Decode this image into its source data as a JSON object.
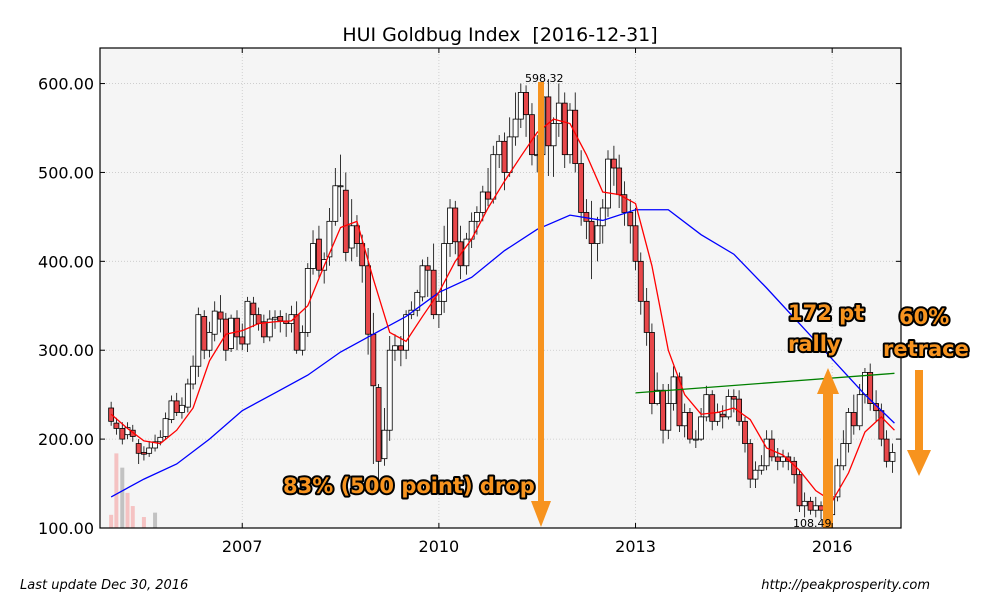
{
  "chart_data": {
    "type": "candlestick",
    "title": "HUI Goldbug Index  [2016-12-31]",
    "y_ticks": [
      "100.00",
      "200.00",
      "300.00",
      "400.00",
      "500.00",
      "600.00"
    ],
    "x_ticks": [
      "2007",
      "2010",
      "2013",
      "2016"
    ],
    "ylim": [
      100,
      640
    ],
    "xlim": [
      2004.83,
      2017.05
    ],
    "grid": true,
    "annotations": {
      "peak_label": "598.32",
      "low_label": "108.49",
      "drop": "83% (500 point) drop",
      "rally_line1": "172 pt",
      "rally_line2": "rally",
      "retrace_line1": "60%",
      "retrace_line2": "retrace"
    },
    "colors": {
      "up_candle": "#ffffff",
      "down_candle": "#e8474a",
      "ma_short": "#ff0000",
      "ma_long": "#0000ff",
      "trend_line": "#008000",
      "arrow": "#f7931e",
      "plot_bg": "#f5f5f5"
    },
    "candles": [
      [
        2005.0,
        235,
        220,
        242,
        215
      ],
      [
        2005.08,
        218,
        212,
        224,
        205
      ],
      [
        2005.17,
        212,
        200,
        219,
        194
      ],
      [
        2005.25,
        205,
        213,
        219,
        200
      ],
      [
        2005.33,
        210,
        203,
        216,
        197
      ],
      [
        2005.42,
        195,
        184,
        200,
        172
      ],
      [
        2005.5,
        185,
        183,
        192,
        176
      ],
      [
        2005.58,
        184,
        190,
        198,
        180
      ],
      [
        2005.67,
        190,
        197,
        205,
        186
      ],
      [
        2005.75,
        197,
        202,
        210,
        193
      ],
      [
        2005.83,
        203,
        223,
        230,
        199
      ],
      [
        2005.92,
        222,
        243,
        249,
        218
      ],
      [
        2006.0,
        243,
        230,
        252,
        226
      ],
      [
        2006.08,
        230,
        238,
        247,
        223
      ],
      [
        2006.17,
        236,
        262,
        268,
        230
      ],
      [
        2006.25,
        262,
        282,
        294,
        256
      ],
      [
        2006.33,
        282,
        340,
        348,
        270
      ],
      [
        2006.42,
        338,
        300,
        345,
        290
      ],
      [
        2006.5,
        300,
        320,
        332,
        292
      ],
      [
        2006.58,
        318,
        344,
        355,
        310
      ],
      [
        2006.67,
        343,
        335,
        362,
        320
      ],
      [
        2006.75,
        335,
        300,
        342,
        288
      ],
      [
        2006.83,
        302,
        336,
        340,
        298
      ],
      [
        2006.92,
        336,
        315,
        345,
        300
      ],
      [
        2007.0,
        315,
        307,
        330,
        300
      ],
      [
        2007.08,
        307,
        355,
        360,
        298
      ],
      [
        2007.17,
        353,
        340,
        360,
        326
      ],
      [
        2007.25,
        340,
        330,
        348,
        322
      ],
      [
        2007.33,
        332,
        315,
        340,
        308
      ],
      [
        2007.42,
        315,
        335,
        345,
        310
      ],
      [
        2007.5,
        335,
        337,
        345,
        324
      ],
      [
        2007.58,
        338,
        333,
        345,
        320
      ],
      [
        2007.67,
        333,
        330,
        342,
        315
      ],
      [
        2007.75,
        330,
        340,
        350,
        320
      ],
      [
        2007.83,
        340,
        300,
        355,
        296
      ],
      [
        2007.92,
        300,
        320,
        328,
        294
      ],
      [
        2008.0,
        320,
        392,
        398,
        315
      ],
      [
        2008.08,
        392,
        420,
        435,
        385
      ],
      [
        2008.17,
        425,
        390,
        440,
        380
      ],
      [
        2008.25,
        390,
        402,
        410,
        375
      ],
      [
        2008.33,
        405,
        445,
        460,
        395
      ],
      [
        2008.42,
        445,
        485,
        505,
        440
      ],
      [
        2008.5,
        485,
        485,
        520,
        450
      ],
      [
        2008.58,
        480,
        410,
        500,
        400
      ],
      [
        2008.67,
        415,
        440,
        470,
        400
      ],
      [
        2008.75,
        440,
        420,
        452,
        405
      ],
      [
        2008.83,
        420,
        395,
        430,
        376
      ],
      [
        2008.92,
        395,
        318,
        415,
        295
      ],
      [
        2009.0,
        318,
        260,
        342,
        172
      ],
      [
        2009.08,
        258,
        175,
        262,
        150
      ],
      [
        2009.17,
        178,
        210,
        235,
        170
      ],
      [
        2009.25,
        210,
        300,
        316,
        198
      ],
      [
        2009.33,
        300,
        305,
        318,
        288
      ],
      [
        2009.42,
        305,
        300,
        316,
        282
      ],
      [
        2009.5,
        300,
        340,
        345,
        290
      ],
      [
        2009.58,
        340,
        345,
        355,
        335
      ],
      [
        2009.67,
        345,
        365,
        368,
        338
      ],
      [
        2009.75,
        360,
        395,
        402,
        355
      ],
      [
        2009.83,
        395,
        390,
        405,
        360
      ],
      [
        2009.92,
        390,
        340,
        420,
        335
      ],
      [
        2010.0,
        340,
        355,
        363,
        325
      ],
      [
        2010.08,
        355,
        420,
        440,
        342
      ],
      [
        2010.17,
        420,
        460,
        470,
        405
      ],
      [
        2010.25,
        460,
        422,
        468,
        408
      ],
      [
        2010.33,
        422,
        395,
        440,
        380
      ],
      [
        2010.42,
        395,
        425,
        432,
        385
      ],
      [
        2010.5,
        425,
        445,
        455,
        415
      ],
      [
        2010.58,
        445,
        455,
        462,
        430
      ],
      [
        2010.67,
        455,
        478,
        485,
        445
      ],
      [
        2010.75,
        478,
        470,
        505,
        462
      ],
      [
        2010.83,
        470,
        520,
        530,
        465
      ],
      [
        2010.92,
        520,
        535,
        542,
        505
      ],
      [
        2011.0,
        535,
        500,
        545,
        480
      ],
      [
        2011.08,
        500,
        540,
        562,
        495
      ],
      [
        2011.17,
        540,
        560,
        590,
        530
      ],
      [
        2011.25,
        560,
        590,
        600,
        550
      ],
      [
        2011.33,
        590,
        565,
        598,
        540
      ],
      [
        2011.42,
        565,
        520,
        578,
        508
      ],
      [
        2011.5,
        520,
        520,
        542,
        500
      ],
      [
        2011.58,
        520,
        585,
        600,
        510
      ],
      [
        2011.67,
        585,
        530,
        605,
        496
      ],
      [
        2011.75,
        530,
        555,
        562,
        495
      ],
      [
        2011.83,
        555,
        578,
        600,
        540
      ],
      [
        2011.92,
        578,
        520,
        590,
        505
      ],
      [
        2012.0,
        520,
        570,
        578,
        510
      ],
      [
        2012.08,
        570,
        510,
        590,
        500
      ],
      [
        2012.17,
        510,
        455,
        525,
        440
      ],
      [
        2012.25,
        455,
        445,
        470,
        425
      ],
      [
        2012.33,
        445,
        420,
        468,
        380
      ],
      [
        2012.42,
        420,
        440,
        450,
        400
      ],
      [
        2012.5,
        440,
        460,
        470,
        420
      ],
      [
        2012.58,
        460,
        515,
        525,
        450
      ],
      [
        2012.67,
        515,
        505,
        530,
        485
      ],
      [
        2012.75,
        505,
        475,
        520,
        460
      ],
      [
        2012.83,
        475,
        455,
        490,
        440
      ],
      [
        2012.92,
        455,
        440,
        470,
        420
      ],
      [
        2013.0,
        440,
        400,
        460,
        390
      ],
      [
        2013.08,
        400,
        355,
        410,
        340
      ],
      [
        2013.17,
        355,
        320,
        370,
        305
      ],
      [
        2013.25,
        320,
        240,
        330,
        228
      ],
      [
        2013.33,
        240,
        255,
        275,
        238
      ],
      [
        2013.42,
        255,
        210,
        262,
        195
      ],
      [
        2013.5,
        210,
        240,
        262,
        200
      ],
      [
        2013.58,
        240,
        270,
        282,
        232
      ],
      [
        2013.67,
        270,
        215,
        275,
        208
      ],
      [
        2013.75,
        215,
        230,
        240,
        202
      ],
      [
        2013.83,
        230,
        200,
        235,
        195
      ],
      [
        2013.92,
        200,
        200,
        210,
        190
      ],
      [
        2014.0,
        200,
        225,
        235,
        198
      ],
      [
        2014.08,
        225,
        250,
        260,
        220
      ],
      [
        2014.17,
        250,
        220,
        255,
        210
      ],
      [
        2014.25,
        220,
        230,
        240,
        215
      ],
      [
        2014.33,
        228,
        225,
        238,
        212
      ],
      [
        2014.42,
        225,
        248,
        256,
        222
      ],
      [
        2014.5,
        248,
        245,
        256,
        230
      ],
      [
        2014.58,
        245,
        220,
        255,
        215
      ],
      [
        2014.67,
        220,
        195,
        225,
        185
      ],
      [
        2014.75,
        195,
        155,
        200,
        145
      ],
      [
        2014.83,
        155,
        165,
        175,
        145
      ],
      [
        2014.92,
        165,
        170,
        182,
        160
      ],
      [
        2015.0,
        170,
        200,
        210,
        165
      ],
      [
        2015.08,
        200,
        180,
        210,
        175
      ],
      [
        2015.17,
        180,
        175,
        190,
        165
      ],
      [
        2015.25,
        175,
        180,
        188,
        168
      ],
      [
        2015.33,
        180,
        175,
        185,
        165
      ],
      [
        2015.42,
        175,
        160,
        180,
        150
      ],
      [
        2015.5,
        160,
        125,
        165,
        118
      ],
      [
        2015.58,
        125,
        130,
        140,
        112
      ],
      [
        2015.67,
        130,
        120,
        135,
        115
      ],
      [
        2015.75,
        120,
        125,
        135,
        112
      ],
      [
        2015.83,
        125,
        120,
        130,
        110
      ],
      [
        2015.92,
        120,
        115,
        125,
        108
      ],
      [
        2016.0,
        115,
        135,
        140,
        110
      ],
      [
        2016.08,
        135,
        170,
        178,
        130
      ],
      [
        2016.17,
        170,
        195,
        210,
        165
      ],
      [
        2016.25,
        195,
        230,
        235,
        185
      ],
      [
        2016.33,
        230,
        215,
        250,
        205
      ],
      [
        2016.42,
        215,
        250,
        262,
        210
      ],
      [
        2016.5,
        250,
        275,
        280,
        240
      ],
      [
        2016.58,
        275,
        240,
        285,
        232
      ],
      [
        2016.67,
        240,
        232,
        255,
        220
      ],
      [
        2016.75,
        232,
        200,
        240,
        192
      ],
      [
        2016.83,
        200,
        175,
        210,
        168
      ],
      [
        2016.92,
        175,
        185,
        195,
        162
      ]
    ],
    "ma_short": [
      [
        2005.0,
        228
      ],
      [
        2005.25,
        212
      ],
      [
        2005.5,
        198
      ],
      [
        2005.75,
        195
      ],
      [
        2006.0,
        210
      ],
      [
        2006.25,
        235
      ],
      [
        2006.5,
        288
      ],
      [
        2006.75,
        318
      ],
      [
        2007.0,
        322
      ],
      [
        2007.25,
        330
      ],
      [
        2007.5,
        332
      ],
      [
        2007.75,
        333
      ],
      [
        2008.0,
        350
      ],
      [
        2008.25,
        395
      ],
      [
        2008.5,
        438
      ],
      [
        2008.75,
        445
      ],
      [
        2009.0,
        380
      ],
      [
        2009.25,
        320
      ],
      [
        2009.5,
        310
      ],
      [
        2009.75,
        338
      ],
      [
        2010.0,
        365
      ],
      [
        2010.25,
        400
      ],
      [
        2010.5,
        425
      ],
      [
        2010.75,
        460
      ],
      [
        2011.0,
        490
      ],
      [
        2011.25,
        518
      ],
      [
        2011.5,
        545
      ],
      [
        2011.75,
        560
      ],
      [
        2012.0,
        555
      ],
      [
        2012.25,
        520
      ],
      [
        2012.5,
        478
      ],
      [
        2012.75,
        475
      ],
      [
        2013.0,
        465
      ],
      [
        2013.25,
        395
      ],
      [
        2013.5,
        300
      ],
      [
        2013.75,
        250
      ],
      [
        2014.0,
        228
      ],
      [
        2014.25,
        230
      ],
      [
        2014.5,
        235
      ],
      [
        2014.75,
        222
      ],
      [
        2015.0,
        190
      ],
      [
        2015.25,
        182
      ],
      [
        2015.5,
        165
      ],
      [
        2015.75,
        142
      ],
      [
        2016.0,
        130
      ],
      [
        2016.25,
        162
      ],
      [
        2016.5,
        208
      ],
      [
        2016.75,
        225
      ],
      [
        2016.95,
        210
      ]
    ],
    "ma_long": [
      [
        2005.0,
        135
      ],
      [
        2005.5,
        155
      ],
      [
        2006.0,
        172
      ],
      [
        2006.5,
        200
      ],
      [
        2007.0,
        232
      ],
      [
        2007.5,
        252
      ],
      [
        2008.0,
        272
      ],
      [
        2008.5,
        298
      ],
      [
        2009.0,
        318
      ],
      [
        2009.5,
        338
      ],
      [
        2010.0,
        365
      ],
      [
        2010.5,
        382
      ],
      [
        2011.0,
        412
      ],
      [
        2011.5,
        436
      ],
      [
        2012.0,
        452
      ],
      [
        2012.5,
        446
      ],
      [
        2013.0,
        458
      ],
      [
        2013.5,
        458
      ],
      [
        2014.0,
        430
      ],
      [
        2014.5,
        408
      ],
      [
        2015.0,
        370
      ],
      [
        2015.5,
        330
      ],
      [
        2016.0,
        290
      ],
      [
        2016.5,
        250
      ],
      [
        2016.95,
        218
      ]
    ],
    "trend_line": [
      [
        2013.0,
        252
      ],
      [
        2016.95,
        274
      ]
    ],
    "volume": [
      [
        2005.0,
        0.12
      ],
      [
        2005.08,
        0.68
      ],
      [
        2005.17,
        0.55
      ],
      [
        2005.25,
        0.32
      ],
      [
        2005.33,
        0.2
      ],
      [
        2005.5,
        0.1
      ],
      [
        2005.67,
        0.14
      ]
    ]
  },
  "footer": {
    "left": "Last update Dec 30, 2016",
    "right": "http://peakprosperity.com"
  }
}
